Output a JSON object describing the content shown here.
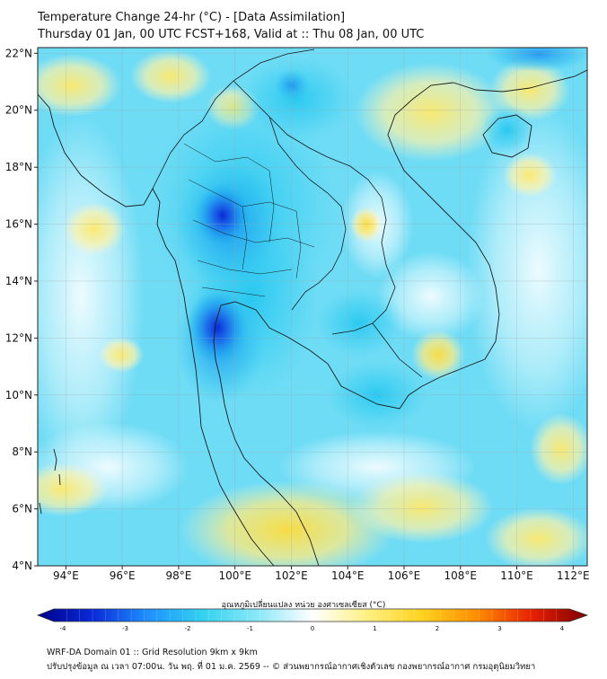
{
  "title": {
    "line1": "Temperature Change 24-hr (°C) - [Data Assimilation]",
    "line2": "Thursday 01 Jan, 00 UTC FCST+168, Valid at :: Thu 08 Jan, 00 UTC"
  },
  "map": {
    "lon_range": [
      93,
      112.5
    ],
    "lat_range": [
      4,
      22.2
    ],
    "lon_ticks": [
      {
        "value": 94,
        "label": "94°E"
      },
      {
        "value": 96,
        "label": "96°E"
      },
      {
        "value": 98,
        "label": "98°E"
      },
      {
        "value": 100,
        "label": "100°E"
      },
      {
        "value": 102,
        "label": "102°E"
      },
      {
        "value": 104,
        "label": "104°E"
      },
      {
        "value": 106,
        "label": "106°E"
      },
      {
        "value": 108,
        "label": "108°E"
      },
      {
        "value": 110,
        "label": "110°E"
      },
      {
        "value": 112,
        "label": "112°E"
      }
    ],
    "lat_ticks": [
      {
        "value": 4,
        "label": "4°N"
      },
      {
        "value": 6,
        "label": "6°N"
      },
      {
        "value": 8,
        "label": "8°N"
      },
      {
        "value": 10,
        "label": "10°N"
      },
      {
        "value": 12,
        "label": "12°N"
      },
      {
        "value": 14,
        "label": "14°N"
      },
      {
        "value": 16,
        "label": "16°N"
      },
      {
        "value": 18,
        "label": "18°N"
      },
      {
        "value": 20,
        "label": "20°N"
      },
      {
        "value": 22,
        "label": "22°N"
      }
    ]
  },
  "colorbar": {
    "title": "อุณหภูมิเปลี่ยนแปลง หน่วย องศาเซลเซียส (°C)",
    "range": [
      -4,
      4
    ],
    "ticks": [
      {
        "value": -4,
        "label": "-4"
      },
      {
        "value": -3,
        "label": "-3"
      },
      {
        "value": -2,
        "label": "-2"
      },
      {
        "value": -1,
        "label": "-1"
      },
      {
        "value": 0,
        "label": "0"
      },
      {
        "value": 1,
        "label": "1"
      },
      {
        "value": 2,
        "label": "2"
      },
      {
        "value": 3,
        "label": "3"
      },
      {
        "value": 4,
        "label": "4"
      }
    ],
    "stops": [
      "#00008b",
      "#0a2ad8",
      "#1e90ff",
      "#32d2ef",
      "#8ae8f8",
      "#ffffff",
      "#fff080",
      "#ffd21e",
      "#ff8c00",
      "#e62000",
      "#800000"
    ]
  },
  "palette": {
    "warm_light": "#fff2a0",
    "warm_mid": "#ffe45a",
    "cool_light": "#a8ecf8",
    "cool_mid": "#32cbf0",
    "cool_deep": "#1e78f0",
    "cool_darkest": "#0a2ad8"
  },
  "footer": {
    "line1": "WRF-DA Domain 01 :: Grid Resolution 9km x 9km",
    "line2": "ปรับปรุงข้อมูล ณ เวลา 07:00น. วัน พฤ. ที่ 01 ม.ค. 2569 -- © ส่วนพยากรณ์อากาศเชิงตัวเลข กองพยากรณ์อากาศ กรมอุตุนิยมวิทยา"
  }
}
